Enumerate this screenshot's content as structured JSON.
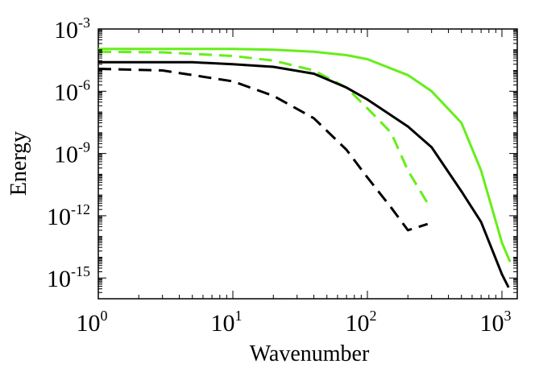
{
  "chart_data": {
    "type": "line",
    "title": "",
    "xlabel": "Wavenumber",
    "ylabel": "Energy",
    "xscale": "log",
    "yscale": "log",
    "xlim": [
      1,
      1300
    ],
    "ylim": [
      1e-16,
      0.001
    ],
    "grid": false,
    "legend": "none",
    "x_ticks": [
      {
        "value": 1,
        "base": "10",
        "exp": "0"
      },
      {
        "value": 10,
        "base": "10",
        "exp": "1"
      },
      {
        "value": 100,
        "base": "10",
        "exp": "2"
      },
      {
        "value": 1000,
        "base": "10",
        "exp": "3"
      }
    ],
    "y_ticks": [
      {
        "value": 0.001,
        "base": "10",
        "exp": "-3"
      },
      {
        "value": 1e-06,
        "base": "10",
        "exp": "-6"
      },
      {
        "value": 1e-09,
        "base": "10",
        "exp": "-9"
      },
      {
        "value": 1e-12,
        "base": "10",
        "exp": "-12"
      },
      {
        "value": 1e-15,
        "base": "10",
        "exp": "-15"
      }
    ],
    "series": [
      {
        "name": "green-solid",
        "color": "#66ee1a",
        "dash": "solid",
        "x": [
          1,
          5,
          10,
          20,
          40,
          70,
          100,
          200,
          300,
          500,
          700,
          1000,
          1150
        ],
        "y": [
          0.00011,
          0.00011,
          0.00011,
          0.0001,
          8e-05,
          5.5e-05,
          3.5e-05,
          6e-06,
          1e-06,
          3e-08,
          1.5e-10,
          5e-14,
          6e-15
        ]
      },
      {
        "name": "green-dashed",
        "color": "#66ee1a",
        "dash": "dashed",
        "x": [
          1,
          3,
          10,
          20,
          40,
          70,
          100,
          150,
          200,
          280
        ],
        "y": [
          8e-05,
          7.5e-05,
          5e-05,
          3e-05,
          1e-05,
          1.5e-06,
          1.5e-07,
          1e-08,
          1.5e-10,
          4e-12
        ]
      },
      {
        "name": "black-solid",
        "color": "#000000",
        "dash": "solid",
        "x": [
          1,
          5,
          10,
          20,
          40,
          70,
          100,
          200,
          300,
          500,
          700,
          1000,
          1120
        ],
        "y": [
          2.5e-05,
          2.5e-05,
          2e-05,
          1.5e-05,
          7e-06,
          1.5e-06,
          4e-07,
          2e-08,
          2e-09,
          1.5e-11,
          5e-13,
          1.5e-15,
          3.5e-16
        ]
      },
      {
        "name": "black-dashed",
        "color": "#000000",
        "dash": "dashed",
        "x": [
          1,
          3,
          10,
          20,
          40,
          70,
          100,
          150,
          200,
          280
        ],
        "y": [
          1.2e-05,
          1e-05,
          3e-06,
          6e-07,
          5e-08,
          1.5e-09,
          7e-11,
          2.5e-12,
          2e-13,
          4e-13
        ]
      }
    ]
  }
}
